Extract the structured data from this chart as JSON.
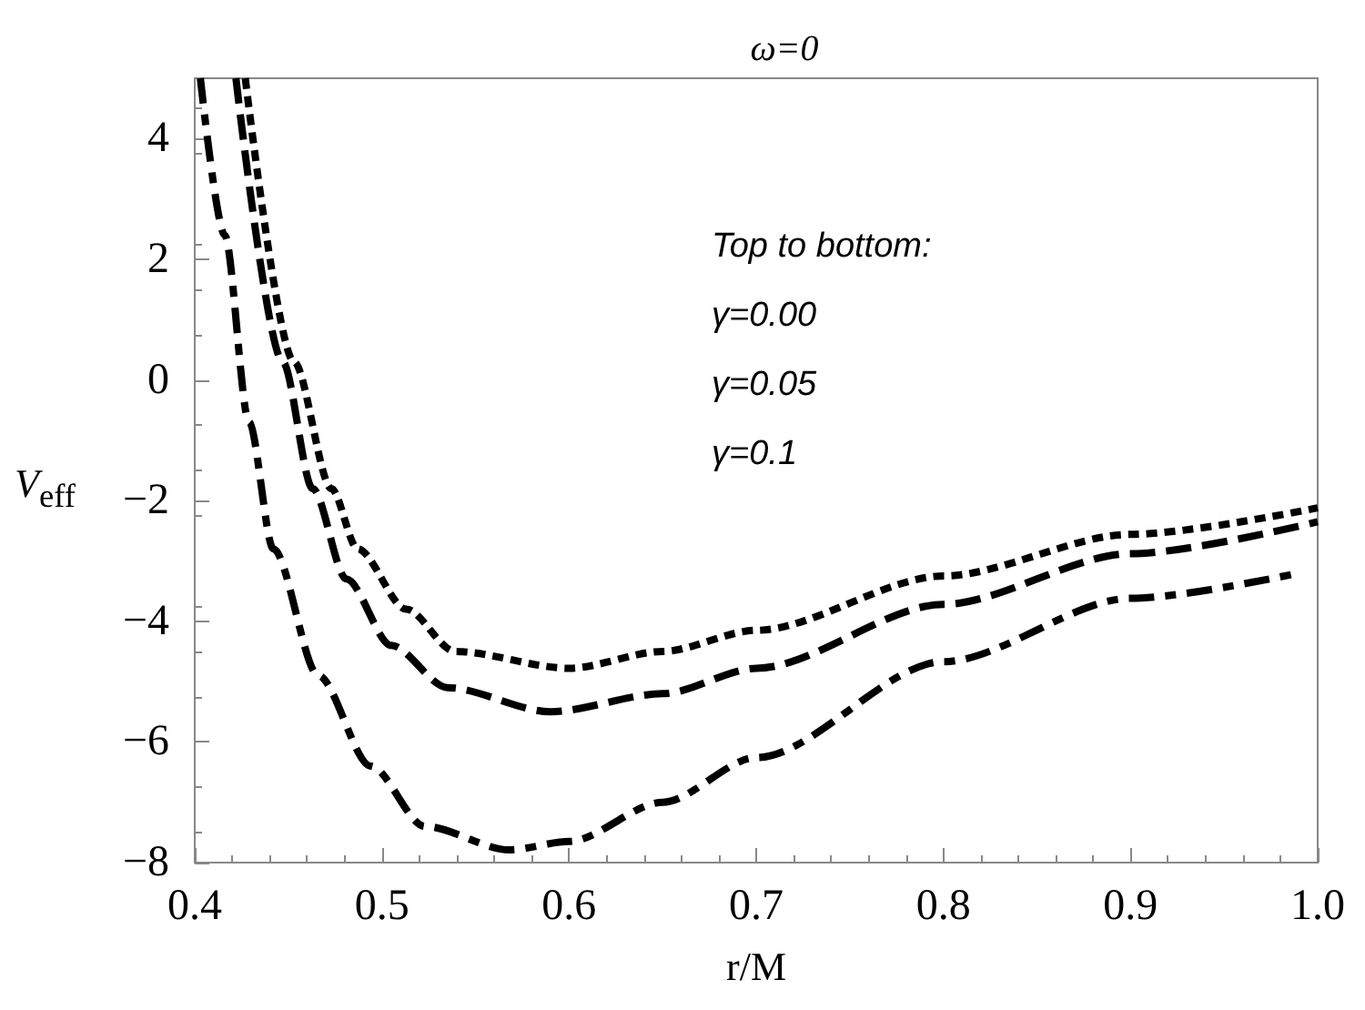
{
  "chart_data": {
    "type": "line",
    "title": "ω=0",
    "xlabel": "r/M",
    "ylabel": "V$_{eff}$",
    "xlim": [
      0.4,
      1.0
    ],
    "xticks": [
      0.4,
      0.5,
      0.6,
      0.7,
      0.8,
      0.9,
      {
        "value": 1,
        "label": "1.0"
      }
    ],
    "ylim": [
      -8,
      5
    ],
    "yticks": [
      -8,
      -6,
      -4,
      -2,
      0,
      2,
      4
    ],
    "grid": false,
    "marker": "none",
    "annotations": [
      "Top to bottom:",
      "γ=0.00",
      "γ=0.05",
      "γ=0.1"
    ],
    "series": [
      {
        "color": "#000000",
        "line_style": "dotted",
        "x": [
          0.427,
          0.453,
          0.473,
          0.487,
          0.513,
          0.539,
          0.6,
          0.65,
          0.7,
          0.8,
          0.9,
          1.0
        ],
        "values": [
          5,
          0.3,
          -1.8,
          -2.8,
          -3.8,
          -4.5,
          -4.78,
          -4.5,
          -4.15,
          -3.25,
          -2.56,
          -2.12
        ]
      },
      {
        "color": "#000000",
        "line_style": "dashed",
        "x": [
          0.422,
          0.447,
          0.463,
          0.481,
          0.505,
          0.535,
          0.59,
          0.65,
          0.7,
          0.8,
          0.9,
          1.0
        ],
        "values": [
          5,
          0.3,
          -1.8,
          -3.3,
          -4.4,
          -5.1,
          -5.5,
          -5.2,
          -4.78,
          -3.72,
          -2.88,
          -2.35
        ]
      },
      {
        "color": "#000000",
        "line_style": "dashdot",
        "x": [
          0.403,
          0.416,
          0.429,
          0.442,
          0.466,
          0.494,
          0.523,
          0.568,
          0.6,
          0.65,
          0.7,
          0.8,
          0.9,
          0.99
        ],
        "values": [
          5,
          2.4,
          -0.7,
          -2.8,
          -4.9,
          -6.4,
          -7.4,
          -7.79,
          -7.65,
          -7.0,
          -6.26,
          -4.67,
          -3.62,
          -3.2
        ]
      }
    ]
  }
}
